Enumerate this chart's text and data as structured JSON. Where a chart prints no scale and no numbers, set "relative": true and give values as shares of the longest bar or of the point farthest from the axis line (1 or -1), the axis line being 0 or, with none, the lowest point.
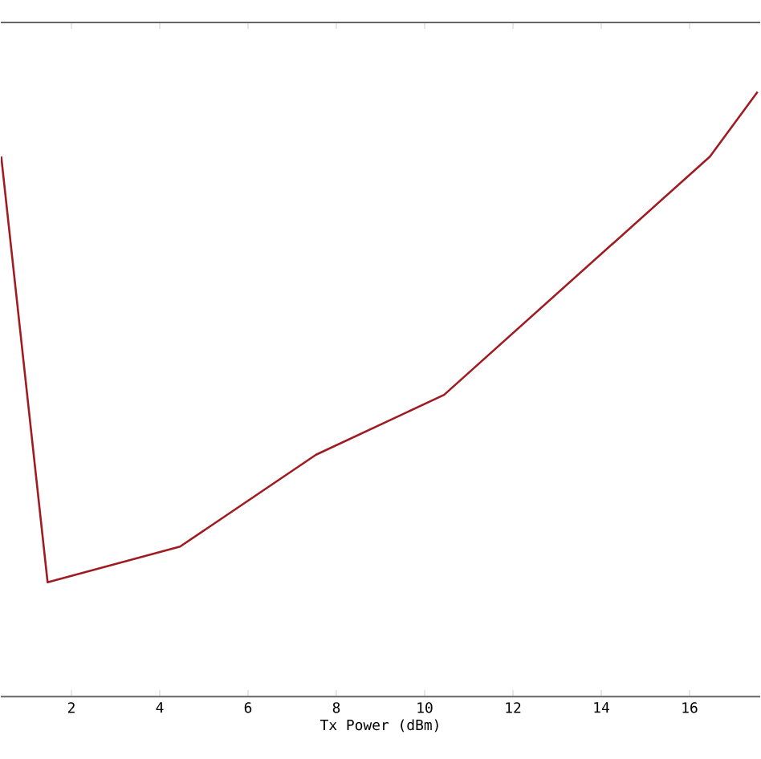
{
  "chart_data": {
    "type": "line",
    "xlabel": "Tx Power (dBm)",
    "relative": true,
    "color": "#a01c22",
    "x": [
      0.41,
      1.46,
      4.46,
      7.54,
      10.44,
      16.46,
      17.54
    ],
    "values": [
      0.893,
      0.189,
      0.248,
      0.4,
      0.499,
      0.893,
      1
    ],
    "xlim": [
      0.4,
      17.6
    ],
    "xticks": [
      2,
      4,
      6,
      8,
      10,
      12,
      14,
      16
    ],
    "grid": false,
    "marker": "none",
    "line_style": "solid"
  }
}
